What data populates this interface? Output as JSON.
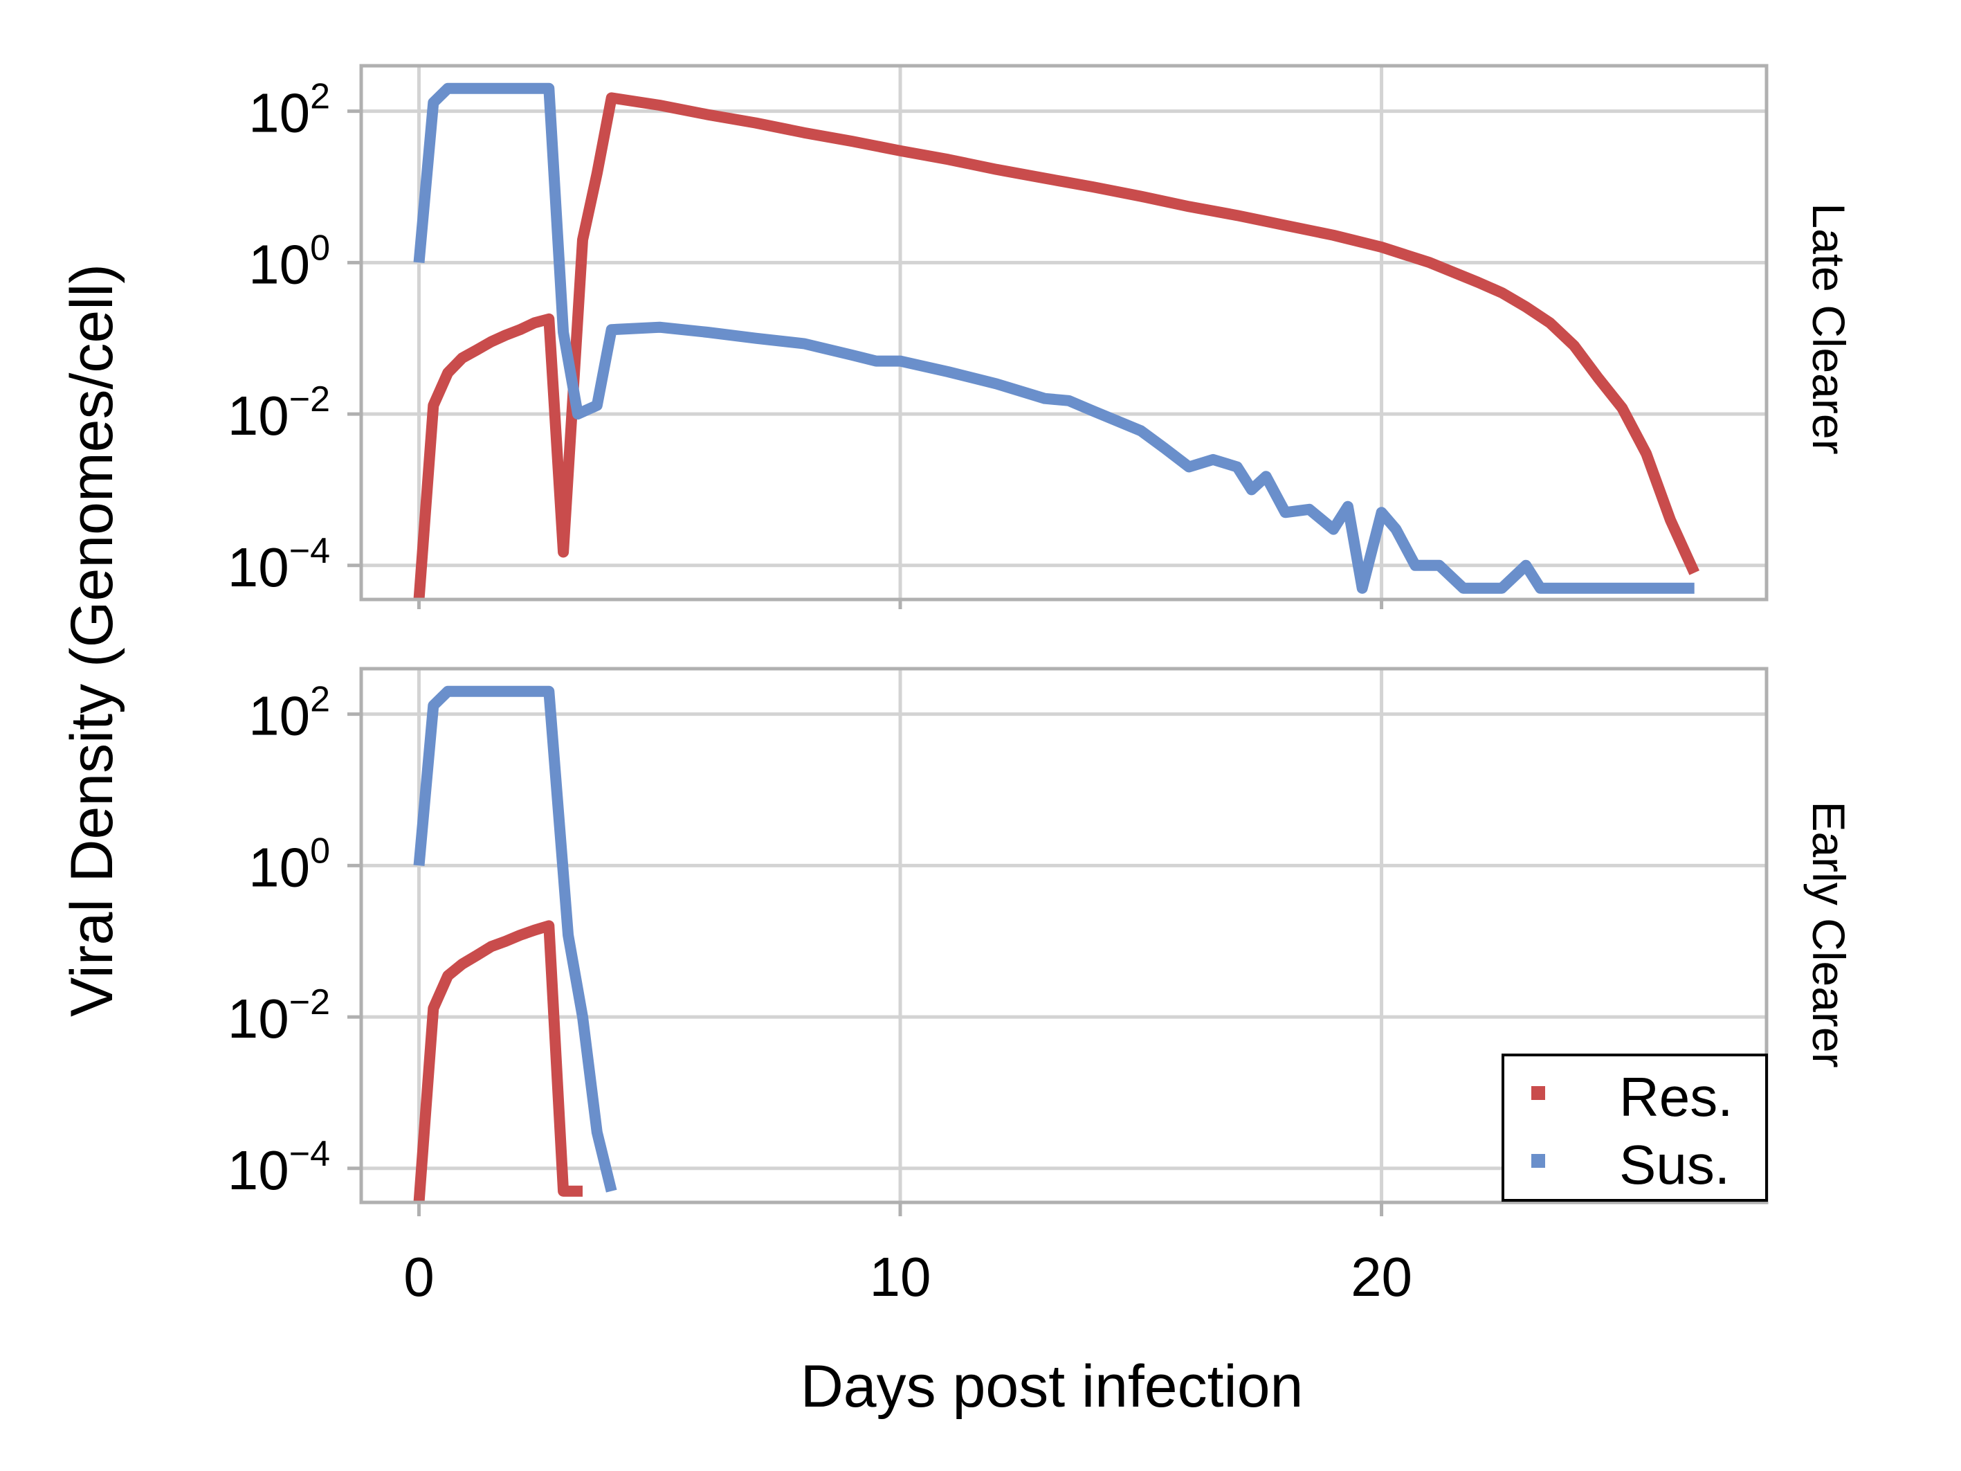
{
  "chart_data": {
    "type": "line",
    "xlabel": "Days post infection",
    "ylabel": "Viral Density (Genomes/cell)",
    "y_scale": "log10",
    "grid": true,
    "legend_position": "bottom-right",
    "x_ticks": [
      0,
      10,
      20
    ],
    "y_ticks": [
      {
        "base": "10",
        "exp": "2"
      },
      {
        "base": "10",
        "exp": "0"
      },
      {
        "base": "10",
        "exp": "−2"
      },
      {
        "base": "10",
        "exp": "−4"
      }
    ],
    "legend": [
      {
        "name": "Res.",
        "color": "#c94c4c"
      },
      {
        "name": "Sus.",
        "color": "#6a8fcb"
      }
    ],
    "panels": [
      {
        "facet": "Late Clearer",
        "series": [
          {
            "name": "Res.",
            "color": "#c94c4c",
            "x": [
              0,
              0.3,
              0.6,
              0.9,
              1.2,
              1.5,
              1.8,
              2.1,
              2.4,
              2.7,
              3.0,
              3.4,
              3.7,
              4.0,
              5,
              6,
              7,
              8,
              9,
              10,
              11,
              12,
              13,
              14,
              15,
              16,
              17,
              18,
              19,
              20,
              21,
              22,
              22.5,
              23,
              23.5,
              24,
              24.5,
              25,
              25.5,
              26,
              26.5
            ],
            "y": [
              3e-05,
              0.013,
              0.035,
              0.055,
              0.07,
              0.09,
              0.11,
              0.13,
              0.16,
              0.18,
              0.00015,
              2,
              15,
              150,
              120,
              90,
              70,
              52,
              40,
              30,
              23,
              17,
              13,
              10,
              7.5,
              5.5,
              4.2,
              3.1,
              2.3,
              1.6,
              1.0,
              0.55,
              0.4,
              0.26,
              0.16,
              0.08,
              0.03,
              0.012,
              0.003,
              0.0004,
              8e-05
            ]
          },
          {
            "name": "Sus.",
            "color": "#6a8fcb",
            "x": [
              0,
              0.3,
              0.6,
              1,
              2.7,
              3.0,
              3.3,
              3.7,
              4.0,
              5,
              6,
              7,
              8,
              9,
              9.5,
              10,
              11,
              12,
              13,
              13.5,
              14,
              15,
              15.5,
              16,
              16.5,
              17,
              17.3,
              17.6,
              18,
              18.5,
              19,
              19.3,
              19.6,
              20,
              20.3,
              20.7,
              21.2,
              21.7,
              22.5,
              23.0,
              23.3,
              23.7,
              26.5
            ],
            "y": [
              1,
              130,
              200,
              200,
              200,
              0.12,
              0.01,
              0.013,
              0.13,
              0.14,
              0.12,
              0.1,
              0.085,
              0.06,
              0.05,
              0.05,
              0.036,
              0.025,
              0.016,
              0.015,
              0.011,
              0.006,
              0.0035,
              0.002,
              0.0025,
              0.002,
              0.001,
              0.0015,
              0.0005,
              0.00055,
              0.0003,
              0.0006,
              5e-05,
              0.0005,
              0.0003,
              0.0001,
              0.0001,
              5e-05,
              5e-05,
              0.0001,
              5e-05,
              5e-05,
              5e-05
            ]
          }
        ]
      },
      {
        "facet": "Early Clearer",
        "series": [
          {
            "name": "Res.",
            "color": "#c94c4c",
            "x": [
              0,
              0.3,
              0.6,
              0.9,
              1.2,
              1.5,
              1.8,
              2.1,
              2.4,
              2.7,
              3.0,
              3.4
            ],
            "y": [
              3e-05,
              0.013,
              0.035,
              0.05,
              0.065,
              0.085,
              0.1,
              0.12,
              0.14,
              0.16,
              5e-05,
              5e-05
            ]
          },
          {
            "name": "Sus.",
            "color": "#6a8fcb",
            "x": [
              0,
              0.3,
              0.6,
              1,
              2.7,
              3.1,
              3.4,
              3.7,
              4.0
            ],
            "y": [
              1,
              130,
              200,
              200,
              200,
              0.12,
              0.01,
              0.0003,
              5e-05
            ]
          }
        ]
      }
    ]
  }
}
